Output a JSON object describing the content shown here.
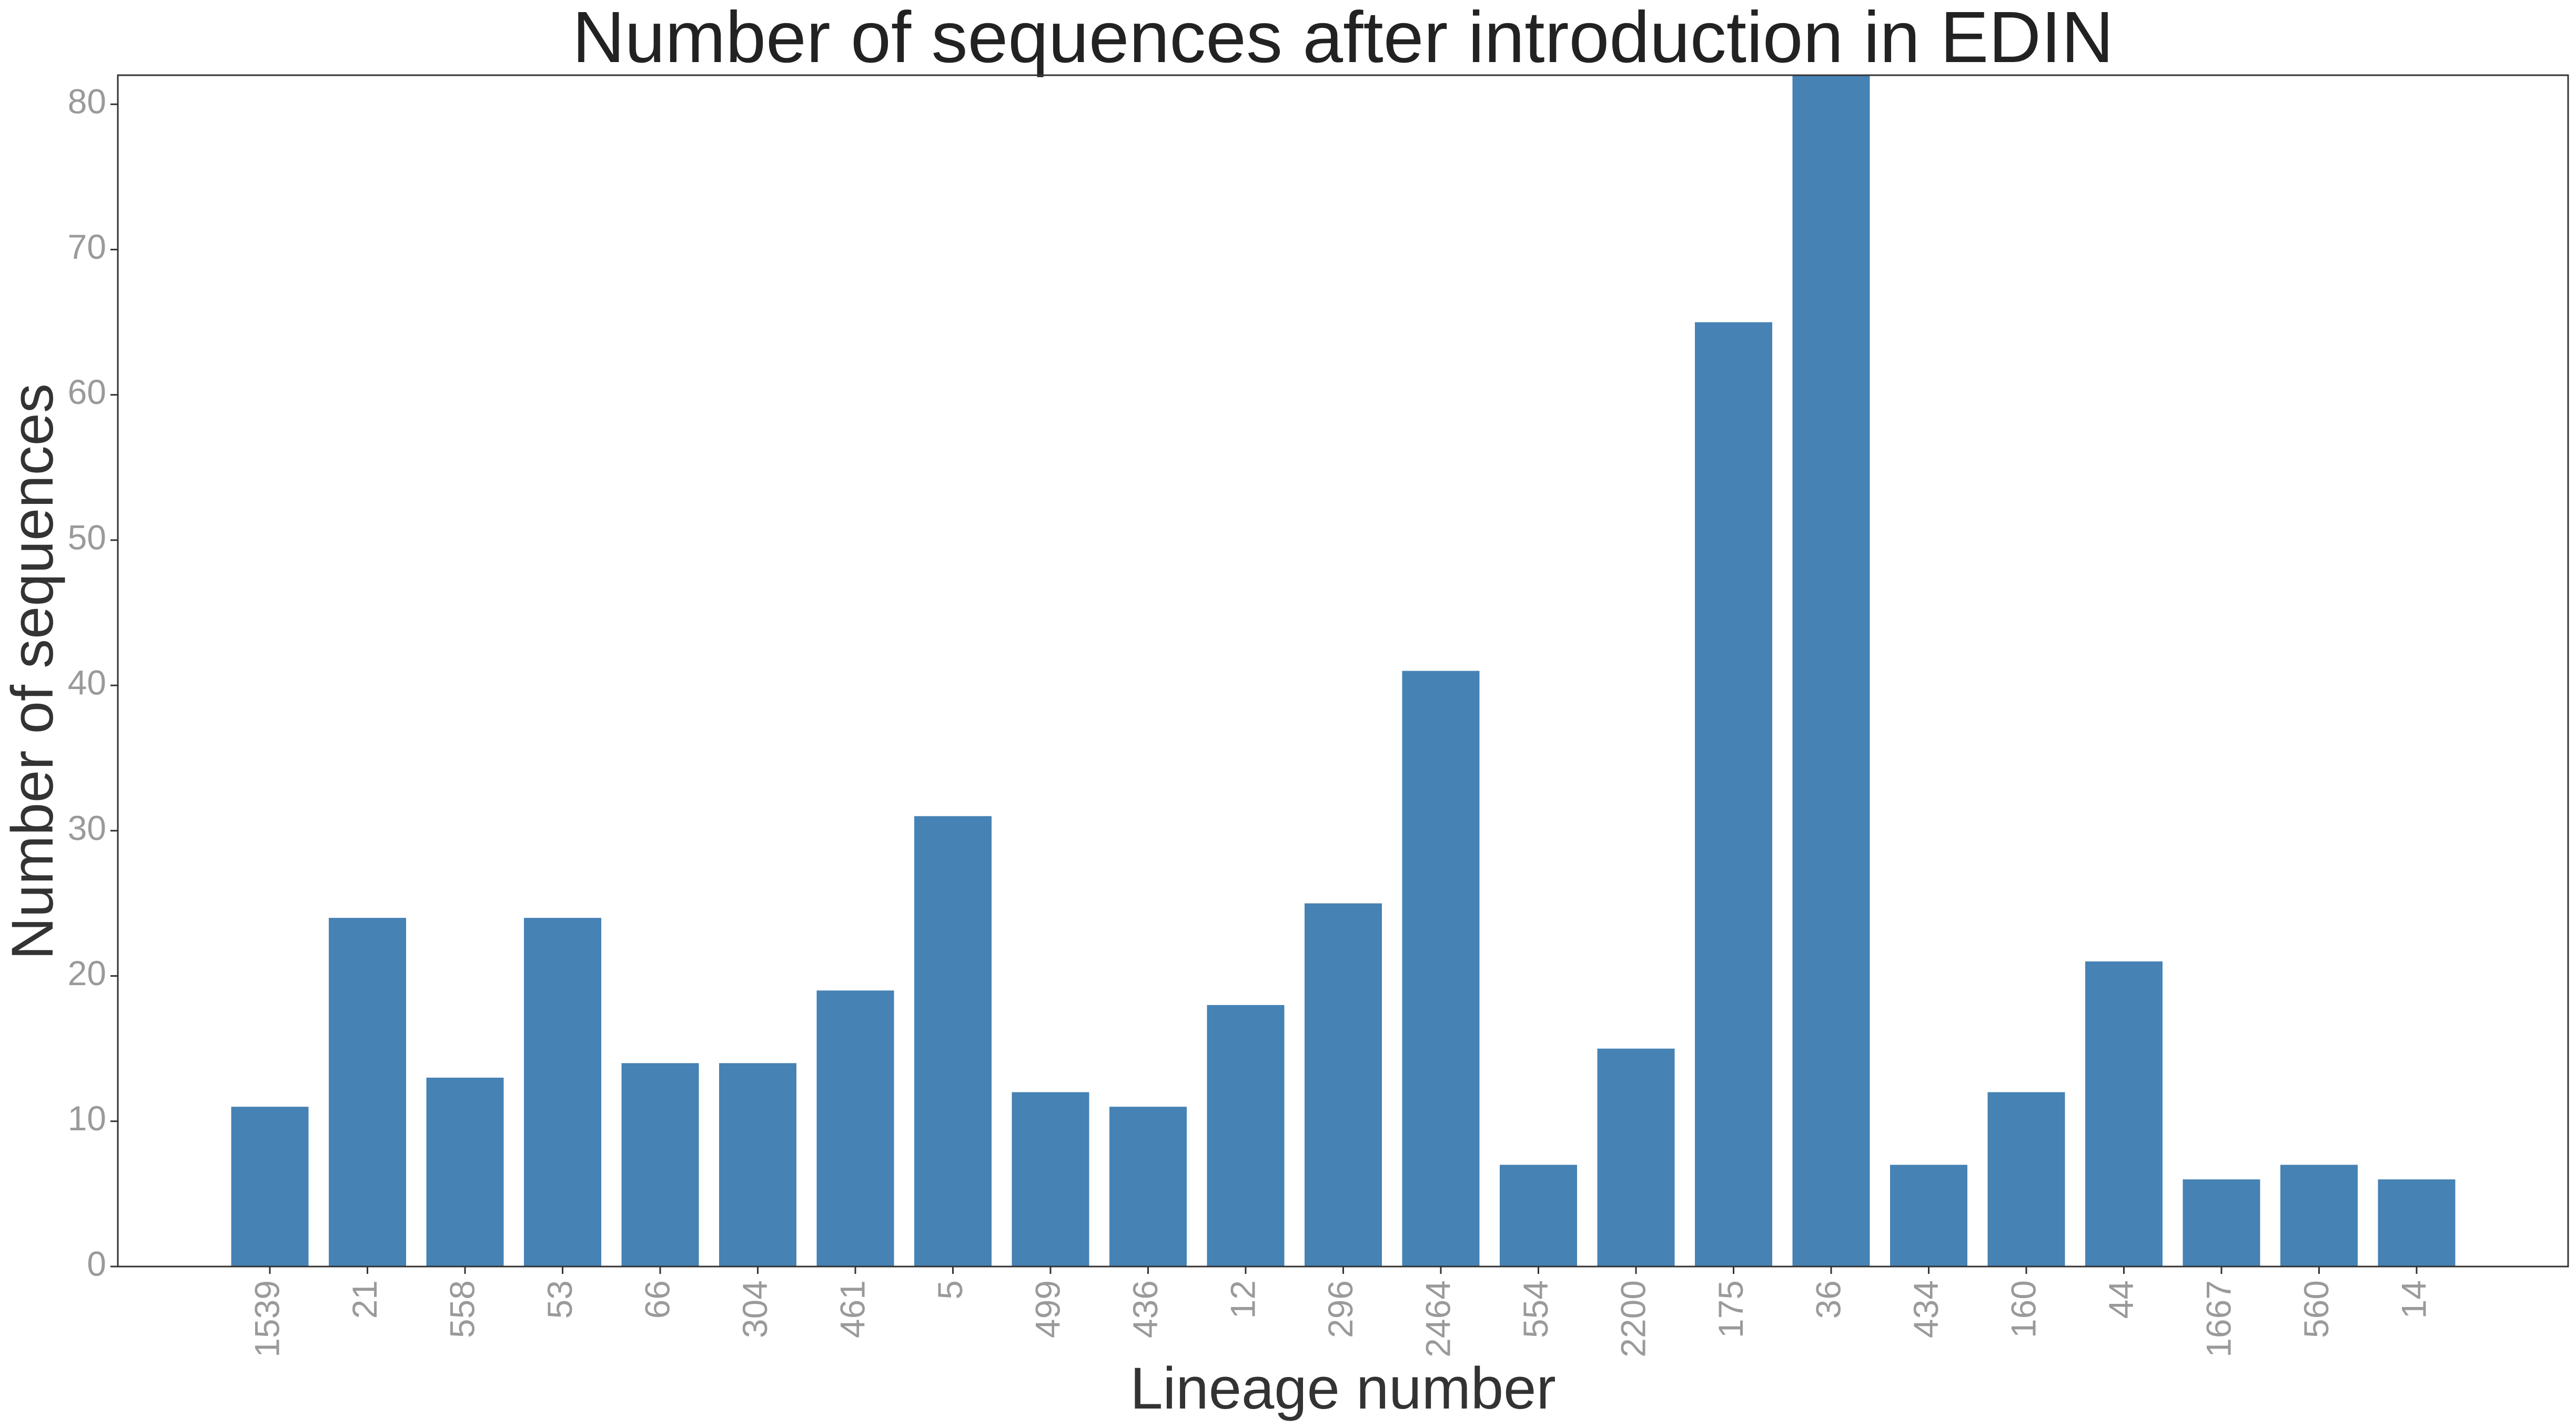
{
  "chart_data": {
    "type": "bar",
    "title": "Number of sequences after introduction in EDIN",
    "xlabel": "Lineage number",
    "ylabel": "Number of sequences",
    "categories": [
      "1539",
      "21",
      "558",
      "53",
      "66",
      "304",
      "461",
      "5",
      "499",
      "436",
      "12",
      "296",
      "2464",
      "554",
      "2200",
      "175",
      "36",
      "434",
      "160",
      "44",
      "1667",
      "560",
      "14"
    ],
    "values": [
      11,
      24,
      13,
      24,
      14,
      14,
      19,
      31,
      12,
      11,
      18,
      25,
      41,
      7,
      15,
      65,
      82,
      7,
      12,
      21,
      6,
      7,
      6
    ],
    "ylim": [
      0,
      82
    ],
    "yticks": [
      0,
      10,
      20,
      30,
      40,
      50,
      60,
      70,
      80
    ],
    "grid": false,
    "legend": "none",
    "bar_color": "#4682b4",
    "x_tick_rotation": "vertical"
  }
}
